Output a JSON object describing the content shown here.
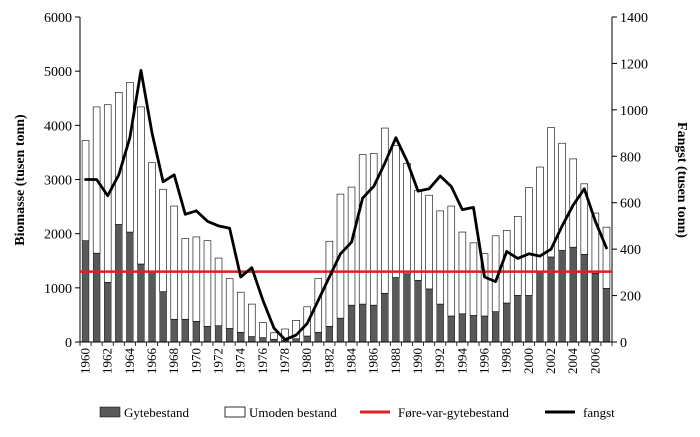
{
  "chart_data": {
    "type": "bar+line",
    "title": "",
    "xlabel": "",
    "ylabel_left": "Biomasse (tusen tonn)",
    "ylabel_right": "Fangst (tusen tonn)",
    "ylim_left": [
      0,
      6000
    ],
    "ylim_right": [
      0,
      1400
    ],
    "yticks_left": [
      "0",
      "1000",
      "2000",
      "3000",
      "4000",
      "5000",
      "6000"
    ],
    "yticks_right": [
      "0",
      "200",
      "400",
      "600",
      "800",
      "1000",
      "1200",
      "1400"
    ],
    "years": [
      1960,
      1961,
      1962,
      1963,
      1964,
      1965,
      1966,
      1967,
      1968,
      1969,
      1970,
      1971,
      1972,
      1973,
      1974,
      1975,
      1976,
      1977,
      1978,
      1979,
      1980,
      1981,
      1982,
      1983,
      1984,
      1985,
      1986,
      1987,
      1988,
      1989,
      1990,
      1991,
      1992,
      1993,
      1994,
      1995,
      1996,
      1997,
      1998,
      1999,
      2000,
      2001,
      2002,
      2003,
      2004,
      2005,
      2006,
      2007
    ],
    "x_tick_labels": [
      "1960",
      "1962",
      "1964",
      "1966",
      "1968",
      "1970",
      "1972",
      "1974",
      "1976",
      "1978",
      "1980",
      "1982",
      "1984",
      "1986",
      "1988",
      "1990",
      "1992",
      "1994",
      "1996",
      "1998",
      "2000",
      "2002",
      "2004",
      "2006"
    ],
    "series": [
      {
        "name": "Gytebestand",
        "type": "bar",
        "axis": "left",
        "color": "#595959",
        "values": [
          1870,
          1640,
          1100,
          2170,
          2030,
          1440,
          1290,
          930,
          420,
          420,
          380,
          290,
          300,
          250,
          180,
          100,
          80,
          50,
          30,
          60,
          110,
          180,
          290,
          440,
          680,
          700,
          680,
          900,
          1190,
          1260,
          1140,
          980,
          700,
          480,
          520,
          490,
          480,
          560,
          720,
          860,
          860,
          1290,
          1570,
          1690,
          1750,
          1620,
          1270,
          990
        ]
      },
      {
        "name": "Umoden bestand",
        "type": "bar",
        "axis": "left",
        "color": "#ffffff",
        "values": [
          1850,
          2700,
          3280,
          2440,
          2760,
          2900,
          2020,
          1890,
          2090,
          1490,
          1560,
          1580,
          1250,
          920,
          740,
          600,
          280,
          120,
          210,
          340,
          540,
          990,
          1570,
          2290,
          2180,
          2760,
          2800,
          3050,
          2440,
          2040,
          1660,
          1730,
          1720,
          2030,
          1510,
          1340,
          1150,
          1400,
          1340,
          1460,
          1990,
          1940,
          2390,
          1980,
          1630,
          1300,
          1110,
          1130
        ]
      },
      {
        "name": "Føre-var-gytebestand",
        "type": "hline",
        "axis": "left",
        "color": "#e02020",
        "value": 1300
      },
      {
        "name": "fangst",
        "type": "line",
        "axis": "right",
        "color": "#000000",
        "values": [
          700,
          700,
          630,
          720,
          880,
          1170,
          900,
          690,
          720,
          550,
          565,
          520,
          500,
          490,
          280,
          320,
          180,
          60,
          10,
          30,
          80,
          180,
          280,
          380,
          430,
          620,
          670,
          770,
          880,
          780,
          650,
          660,
          715,
          670,
          570,
          580,
          280,
          260,
          390,
          360,
          380,
          370,
          400,
          500,
          590,
          660,
          520,
          405
        ]
      }
    ],
    "legend": {
      "position": "bottom",
      "entries": [
        "Gytebestand",
        "Umoden bestand",
        "Føre-var-gytebestand",
        "fangst"
      ]
    }
  }
}
